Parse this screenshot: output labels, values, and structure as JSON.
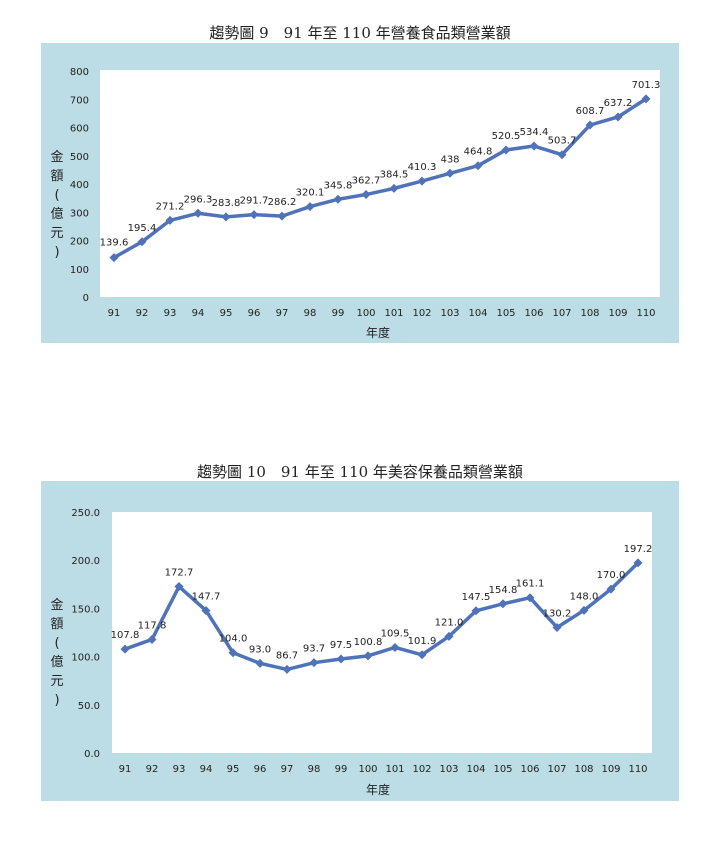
{
  "chart_data": [
    {
      "type": "line",
      "title": "趨勢圖 9　91 年至 110 年營養食品類營業額",
      "xlabel": "年度",
      "ylabel": "金額(億元)",
      "ylabel_chars": [
        "金",
        "額",
        "(",
        "億",
        "元",
        ")"
      ],
      "categories": [
        "91",
        "92",
        "93",
        "94",
        "95",
        "96",
        "97",
        "98",
        "99",
        "100",
        "101",
        "102",
        "103",
        "104",
        "105",
        "106",
        "107",
        "108",
        "109",
        "110"
      ],
      "values": [
        139.6,
        195.4,
        271.2,
        296.3,
        283.8,
        291.7,
        286.2,
        320.1,
        345.8,
        362.7,
        384.5,
        410.3,
        438,
        464.8,
        520.5,
        534.4,
        503.7,
        608.7,
        637.2,
        701.3
      ],
      "value_labels": [
        "139.6",
        "195.4",
        "271.2",
        "296.3",
        "283.8",
        "291.7",
        "286.2",
        "320.1",
        "345.8",
        "362.7",
        "384.5",
        "410.3",
        "438",
        "464.8",
        "520.5",
        "534.4",
        "503.7",
        "608.7",
        "637.2",
        "701.3"
      ],
      "ylim": [
        0,
        800
      ],
      "yticks": [
        0,
        100,
        200,
        300,
        400,
        500,
        600,
        700,
        800
      ],
      "ytick_labels": [
        "0",
        "100",
        "200",
        "300",
        "400",
        "500",
        "600",
        "700",
        "800"
      ],
      "grid": false,
      "legend": "none",
      "line_color": "#4f72b8",
      "panel_color": "#bcdde6"
    },
    {
      "type": "line",
      "title": "趨勢圖 10　91 年至 110 年美容保養品類營業額",
      "xlabel": "年度",
      "ylabel": "金額(億元)",
      "ylabel_chars": [
        "金",
        "額",
        "(",
        "億",
        "元",
        ")"
      ],
      "categories": [
        "91",
        "92",
        "93",
        "94",
        "95",
        "96",
        "97",
        "98",
        "99",
        "100",
        "101",
        "102",
        "103",
        "104",
        "105",
        "106",
        "107",
        "108",
        "109",
        "110"
      ],
      "values": [
        107.8,
        117.8,
        172.7,
        147.7,
        104.0,
        93.0,
        86.7,
        93.7,
        97.5,
        100.8,
        109.5,
        101.9,
        121.0,
        147.5,
        154.8,
        161.1,
        130.2,
        148.0,
        170.0,
        197.2
      ],
      "value_labels": [
        "107.8",
        "117.8",
        "172.7",
        "147.7",
        "104.0",
        "93.0",
        "86.7",
        "93.7",
        "97.5",
        "100.8",
        "109.5",
        "101.9",
        "121.0",
        "147.5",
        "154.8",
        "161.1",
        "130.2",
        "148.0",
        "170.0",
        "197.2"
      ],
      "ylim": [
        0,
        250
      ],
      "yticks": [
        0,
        50,
        100,
        150,
        200,
        250
      ],
      "ytick_labels": [
        "0.0",
        "50.0",
        "100.0",
        "150.0",
        "200.0",
        "250.0"
      ],
      "grid": false,
      "legend": "none",
      "line_color": "#4f72b8",
      "panel_color": "#bcdde6"
    }
  ]
}
